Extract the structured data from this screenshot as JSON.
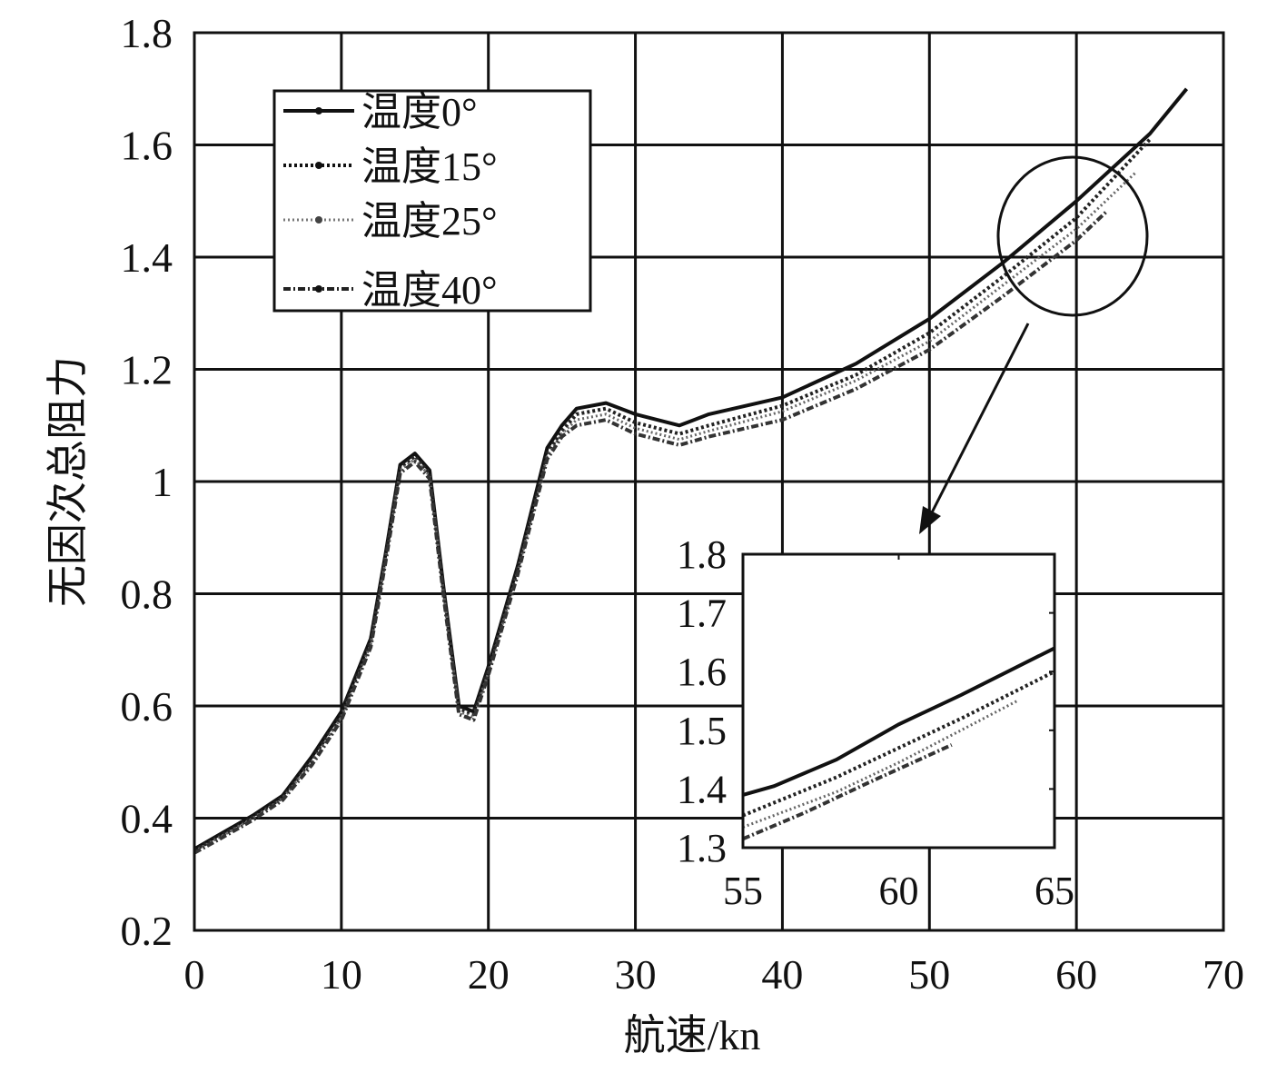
{
  "chart_data": {
    "type": "line",
    "xlabel": "航速/kn",
    "ylabel": "无因次总阻力",
    "xlim": [
      0,
      70
    ],
    "ylim": [
      0.2,
      1.8
    ],
    "x_ticks": [
      "0",
      "10",
      "20",
      "30",
      "40",
      "50",
      "60",
      "70"
    ],
    "y_ticks": [
      "0.2",
      "0.4",
      "0.6",
      "0.8",
      "1",
      "1.2",
      "1.4",
      "1.6",
      "1.8"
    ],
    "x_tick_values": [
      0,
      10,
      20,
      30,
      40,
      50,
      60,
      70
    ],
    "y_tick_values": [
      0.2,
      0.4,
      0.6,
      0.8,
      1.0,
      1.2,
      1.4,
      1.6,
      1.8
    ],
    "grid": true,
    "legend_position": "top-left",
    "series": [
      {
        "name": "温度0°",
        "style": "solid",
        "color": "#111111",
        "x": [
          0,
          2,
          4,
          6,
          8,
          10,
          12,
          13,
          14,
          15,
          16,
          17,
          18,
          19,
          20,
          22,
          24,
          25,
          26,
          28,
          30,
          33,
          35,
          40,
          45,
          50,
          55,
          60,
          65,
          67.5
        ],
        "y": [
          0.345,
          0.375,
          0.405,
          0.44,
          0.51,
          0.59,
          0.72,
          0.87,
          1.03,
          1.05,
          1.02,
          0.8,
          0.6,
          0.59,
          0.67,
          0.85,
          1.06,
          1.1,
          1.13,
          1.14,
          1.12,
          1.1,
          1.12,
          1.15,
          1.21,
          1.29,
          1.39,
          1.5,
          1.62,
          1.7
        ]
      },
      {
        "name": "温度15°",
        "style": "dashed",
        "color": "#222222",
        "x": [
          0,
          2,
          4,
          6,
          8,
          10,
          12,
          13,
          14,
          15,
          16,
          17,
          18,
          19,
          20,
          22,
          24,
          25,
          26,
          28,
          30,
          33,
          35,
          40,
          45,
          50,
          55,
          60,
          65
        ],
        "y": [
          0.343,
          0.372,
          0.402,
          0.437,
          0.505,
          0.585,
          0.715,
          0.865,
          1.025,
          1.045,
          1.015,
          0.795,
          0.595,
          0.585,
          0.665,
          0.845,
          1.05,
          1.09,
          1.12,
          1.13,
          1.105,
          1.085,
          1.1,
          1.135,
          1.19,
          1.265,
          1.365,
          1.47,
          1.61
        ]
      },
      {
        "name": "温度25°",
        "style": "dotted",
        "color": "#666666",
        "x": [
          0,
          2,
          4,
          6,
          8,
          10,
          12,
          13,
          14,
          15,
          16,
          17,
          18,
          19,
          20,
          22,
          24,
          25,
          26,
          28,
          30,
          33,
          35,
          40,
          45,
          50,
          55,
          60,
          64
        ],
        "y": [
          0.341,
          0.37,
          0.4,
          0.435,
          0.5,
          0.58,
          0.71,
          0.86,
          1.02,
          1.04,
          1.01,
          0.79,
          0.59,
          0.58,
          0.66,
          0.84,
          1.045,
          1.085,
          1.11,
          1.12,
          1.095,
          1.075,
          1.09,
          1.125,
          1.18,
          1.25,
          1.35,
          1.45,
          1.55
        ]
      },
      {
        "name": "温度40°",
        "style": "dashdot",
        "color": "#333333",
        "x": [
          0,
          2,
          4,
          6,
          8,
          10,
          12,
          13,
          14,
          15,
          16,
          17,
          18,
          19,
          20,
          22,
          24,
          25,
          26,
          28,
          30,
          33,
          35,
          40,
          45,
          50,
          55,
          60,
          62
        ],
        "y": [
          0.338,
          0.367,
          0.397,
          0.432,
          0.495,
          0.575,
          0.705,
          0.855,
          1.015,
          1.035,
          1.005,
          0.785,
          0.585,
          0.575,
          0.655,
          0.835,
          1.04,
          1.08,
          1.1,
          1.11,
          1.085,
          1.065,
          1.08,
          1.11,
          1.165,
          1.235,
          1.33,
          1.43,
          1.48
        ]
      }
    ],
    "inset": {
      "xlim": [
        55,
        65
      ],
      "ylim": [
        1.3,
        1.8
      ],
      "x_ticks": [
        "55",
        "60",
        "65"
      ],
      "y_ticks": [
        "1.3",
        "1.4",
        "1.5",
        "1.6",
        "1.7",
        "1.8"
      ],
      "x_tick_values": [
        55,
        60,
        65
      ],
      "y_tick_values": [
        1.3,
        1.4,
        1.5,
        1.6,
        1.7,
        1.8
      ],
      "series": [
        {
          "name": "温度0°",
          "x": [
            55,
            56,
            58,
            60,
            62,
            65
          ],
          "y": [
            1.39,
            1.405,
            1.45,
            1.51,
            1.56,
            1.64
          ]
        },
        {
          "name": "温度15°",
          "x": [
            55,
            58,
            60,
            62,
            65
          ],
          "y": [
            1.355,
            1.42,
            1.47,
            1.52,
            1.6
          ]
        },
        {
          "name": "温度25°",
          "x": [
            55,
            58,
            60,
            62,
            63.8
          ],
          "y": [
            1.335,
            1.395,
            1.445,
            1.5,
            1.55
          ]
        },
        {
          "name": "温度40°",
          "x": [
            55,
            57,
            59,
            61.7
          ],
          "y": [
            1.315,
            1.36,
            1.41,
            1.475
          ]
        }
      ]
    }
  }
}
